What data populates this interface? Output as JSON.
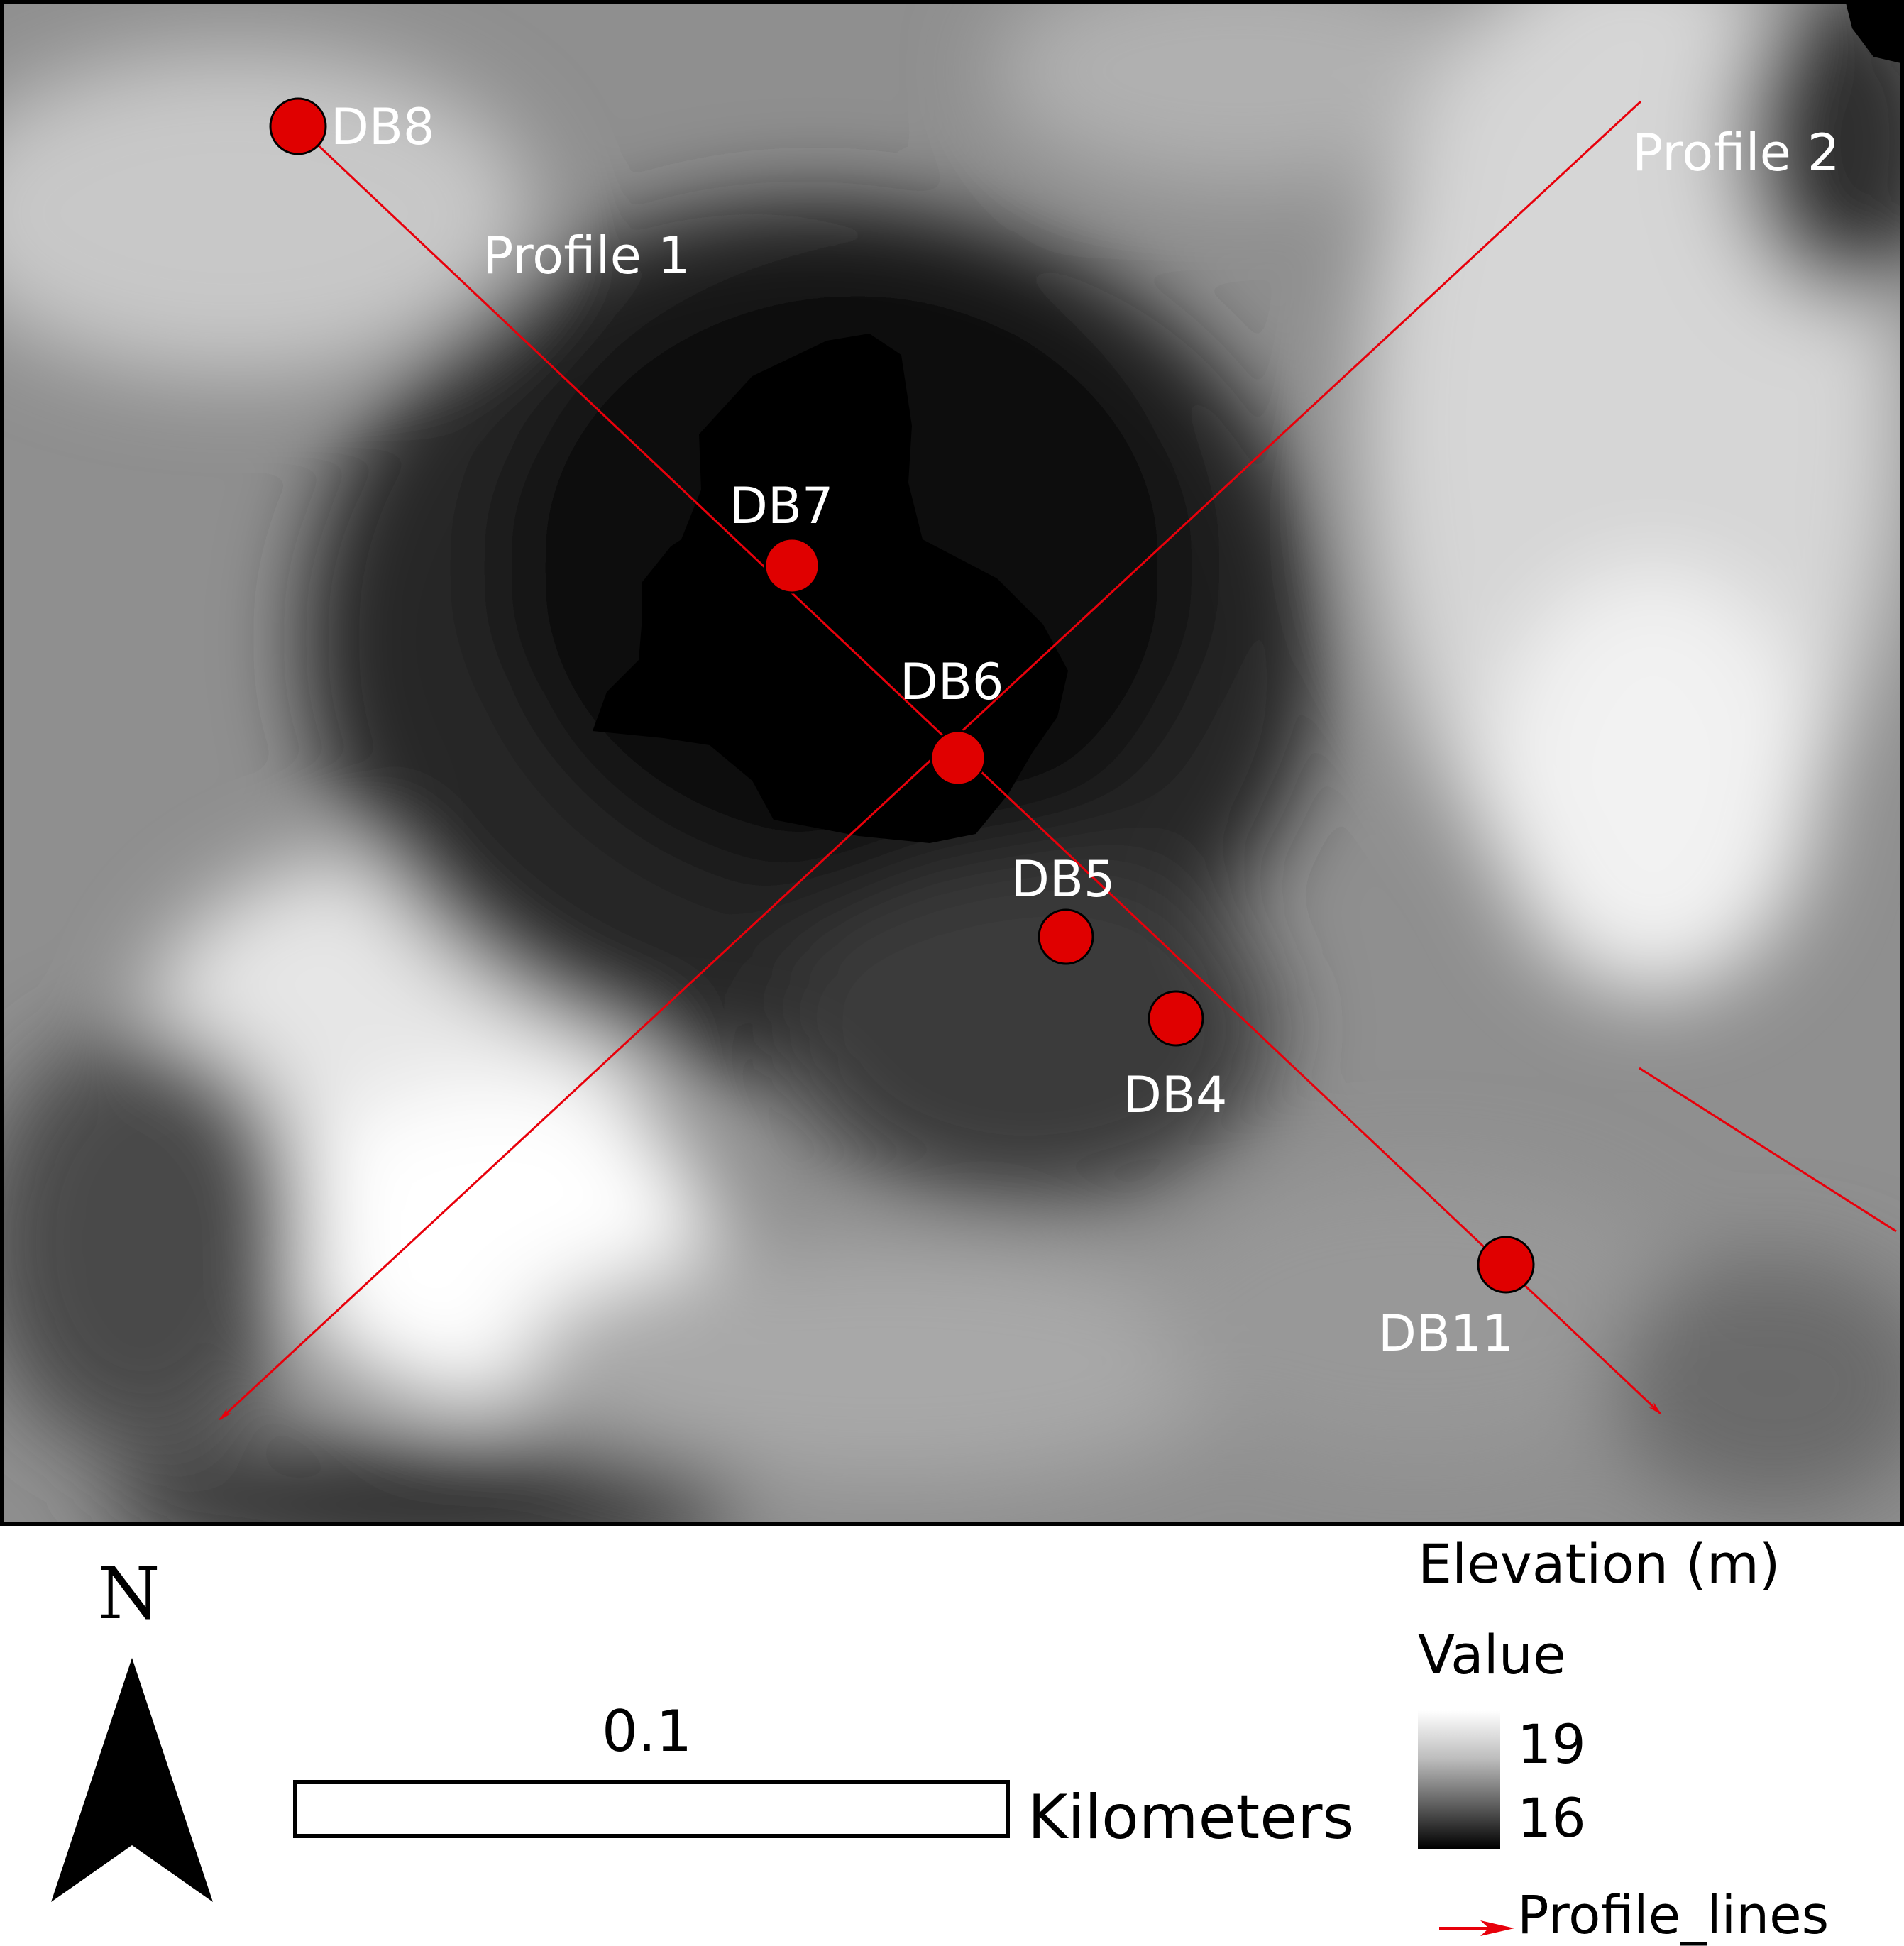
{
  "map": {
    "profiles": [
      {
        "label": "Profile 1"
      },
      {
        "label": "Profile 2"
      }
    ],
    "boreholes": [
      {
        "label": "DB8"
      },
      {
        "label": "DB7"
      },
      {
        "label": "DB6"
      },
      {
        "label": "DB5"
      },
      {
        "label": "DB4"
      },
      {
        "label": "DB11"
      }
    ],
    "colors": {
      "profile_line": "#e8000b",
      "borehole_fill": "#e00000",
      "borehole_stroke": "#000000"
    }
  },
  "north_arrow": {
    "letter": "N"
  },
  "scale_bar": {
    "value": "0.1",
    "unit": "Kilometers"
  },
  "legend": {
    "title": "Elevation (m)",
    "subtitle": "Value",
    "max": "19",
    "min": "16",
    "profile_lines_label": "Profile_lines"
  }
}
